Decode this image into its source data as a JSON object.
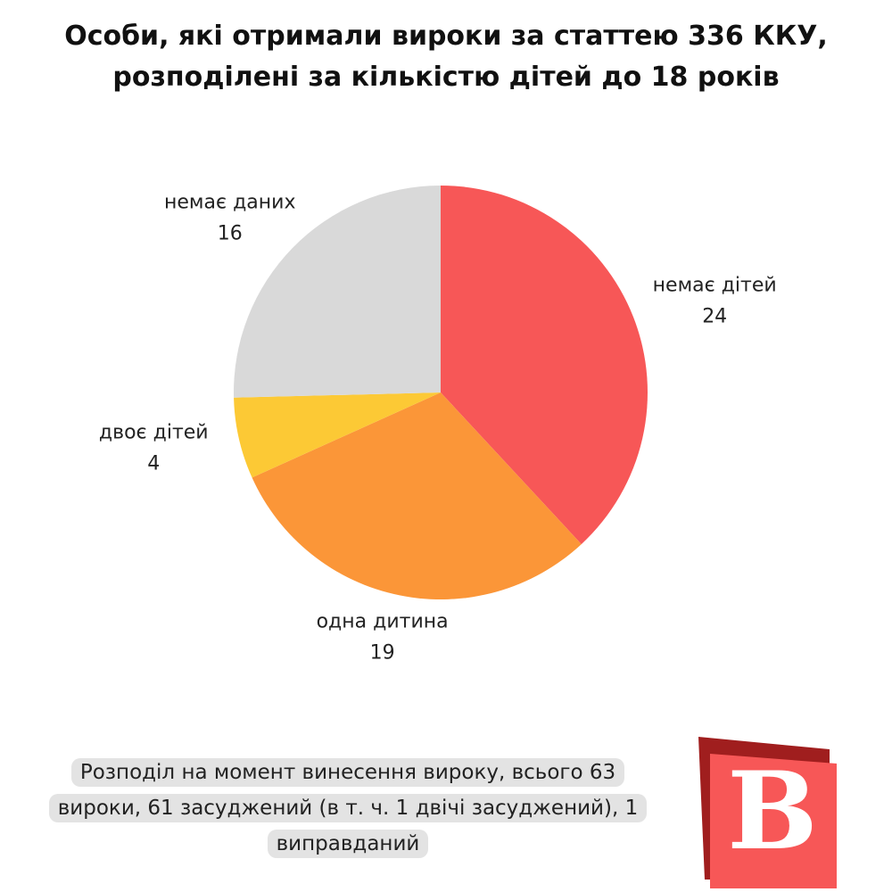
{
  "chart_data": {
    "type": "pie",
    "title": [
      "Особи, які отримали вироки за статтею 336 ККУ,",
      "розподілені за кількістю дітей до 18 років"
    ],
    "categories": [
      "немає дітей",
      "одна дитина",
      "двоє дітей",
      "немає даних"
    ],
    "values": [
      24,
      19,
      4,
      16
    ],
    "colors": [
      "#f75757",
      "#fb9638",
      "#fcc935",
      "#d9d9d9"
    ],
    "note": "Розподіл на момент винесення вироку, всього 63 вироки, 61 засуджений (в т. ч. 1 двічі засуджений), 1 виправданий",
    "logo": "В"
  }
}
